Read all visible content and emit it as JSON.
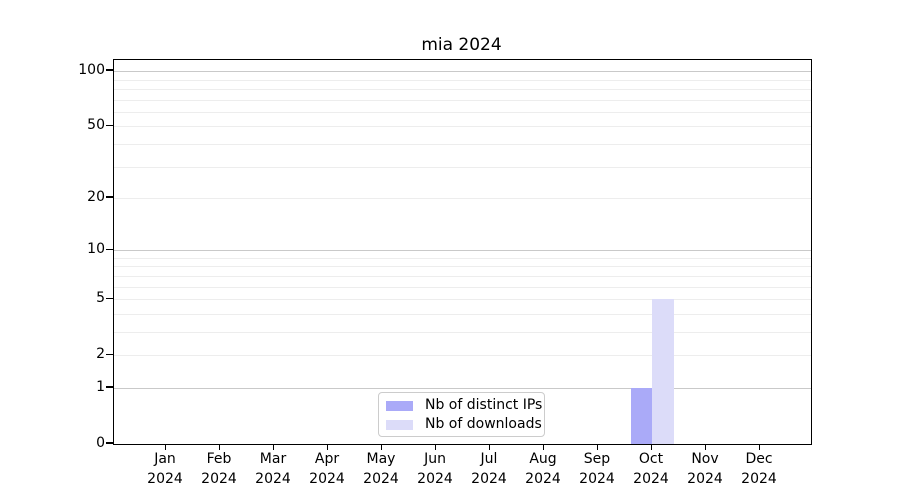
{
  "chart_data": {
    "type": "bar",
    "title": "mia 2024",
    "categories": [
      {
        "month": "Jan",
        "year": "2024"
      },
      {
        "month": "Feb",
        "year": "2024"
      },
      {
        "month": "Mar",
        "year": "2024"
      },
      {
        "month": "Apr",
        "year": "2024"
      },
      {
        "month": "May",
        "year": "2024"
      },
      {
        "month": "Jun",
        "year": "2024"
      },
      {
        "month": "Jul",
        "year": "2024"
      },
      {
        "month": "Aug",
        "year": "2024"
      },
      {
        "month": "Sep",
        "year": "2024"
      },
      {
        "month": "Oct",
        "year": "2024"
      },
      {
        "month": "Nov",
        "year": "2024"
      },
      {
        "month": "Dec",
        "year": "2024"
      }
    ],
    "series": [
      {
        "name": "Nb of distinct IPs",
        "color": "#aaaaf8",
        "values": [
          0,
          0,
          0,
          0,
          0,
          0,
          0,
          0,
          0,
          1,
          0,
          0
        ]
      },
      {
        "name": "Nb of downloads",
        "color": "#dcdcf9",
        "values": [
          0,
          0,
          0,
          0,
          0,
          0,
          0,
          0,
          0,
          5,
          0,
          0
        ]
      }
    ],
    "xlabel": "",
    "ylabel": "",
    "yscale": "log1p",
    "yticks": [
      0,
      1,
      2,
      5,
      10,
      20,
      50,
      100
    ],
    "ylim": [
      0,
      115
    ],
    "grid": true,
    "legend_position": "lower center",
    "colors": {
      "major_grid": "#c9c9c9",
      "minor_grid": "#ededed",
      "spine": "#000000",
      "text": "#000000",
      "legend_border": "#cccccc",
      "background": "#ffffff"
    }
  }
}
